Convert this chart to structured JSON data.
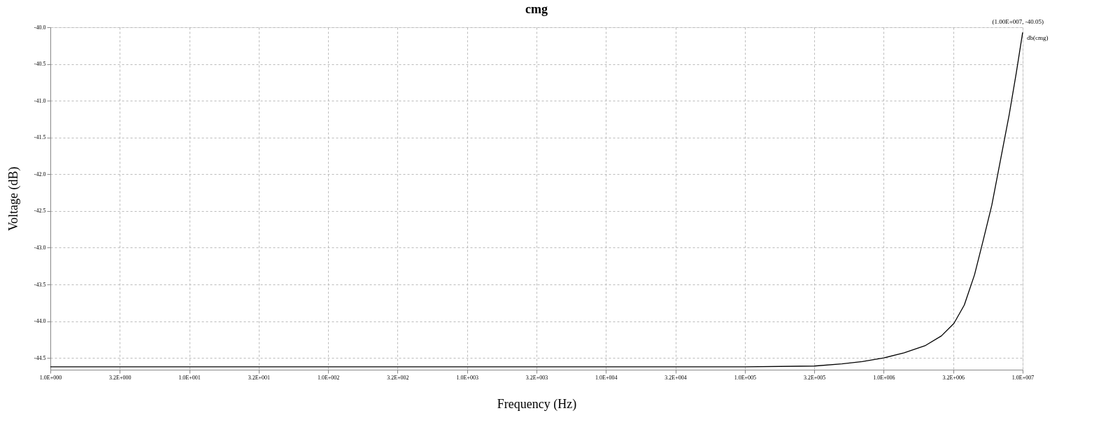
{
  "chart_data": {
    "type": "line",
    "title": "cmg",
    "xlabel": "Frequency (Hz)",
    "ylabel": "Voltage (dB)",
    "log": "x",
    "x": [
      1,
      10,
      100,
      1000,
      10000,
      100000,
      316228,
      500000,
      700000,
      1000000,
      1400000,
      2000000,
      2600000,
      3200000,
      3800000,
      4500000,
      5200000,
      6000000,
      7000000,
      8000000,
      9000000,
      10000000
    ],
    "series": [
      {
        "name": "db(cmg)",
        "color": "#000000",
        "values": [
          -44.62,
          -44.62,
          -44.62,
          -44.62,
          -44.62,
          -44.62,
          -44.61,
          -44.58,
          -44.55,
          -44.5,
          -44.43,
          -44.33,
          -44.2,
          -44.03,
          -43.78,
          -43.37,
          -42.9,
          -42.42,
          -41.76,
          -41.19,
          -40.62,
          -40.07
        ]
      }
    ],
    "annotations": [
      "(1.00E+007, -40.05)"
    ],
    "xlim": [
      1,
      10000000
    ],
    "xticks": [
      {
        "value": 1,
        "label": "1.0E+000"
      },
      {
        "value": 3.1623,
        "label": "3.2E+000"
      },
      {
        "value": 10,
        "label": "1.0E+001"
      },
      {
        "value": 31.623,
        "label": "3.2E+001"
      },
      {
        "value": 100,
        "label": "1.0E+002"
      },
      {
        "value": 316.23,
        "label": "3.2E+002"
      },
      {
        "value": 1000,
        "label": "1.0E+003"
      },
      {
        "value": 3162.3,
        "label": "3.2E+003"
      },
      {
        "value": 10000,
        "label": "1.0E+004"
      },
      {
        "value": 31623,
        "label": "3.2E+004"
      },
      {
        "value": 100000,
        "label": "1.0E+005"
      },
      {
        "value": 316228,
        "label": "3.2E+005"
      },
      {
        "value": 1000000,
        "label": "1.0E+006"
      },
      {
        "value": 3162280,
        "label": "3.2E+006"
      },
      {
        "value": 10000000,
        "label": "1.0E+007"
      }
    ],
    "ylim": [
      -44.66,
      -40.0
    ],
    "yticks": [
      {
        "value": -40.0,
        "label": "-40.0"
      },
      -40.5,
      {
        "value": -41.0,
        "label": "-41.0"
      },
      -41.5,
      {
        "value": -42.0,
        "label": "-42.0"
      },
      -42.5,
      {
        "value": -43.0,
        "label": "-43.0"
      },
      -43.5,
      {
        "value": -44.0,
        "label": "-44.0"
      },
      -44.5
    ],
    "grid": true,
    "legend": false,
    "marker": "none",
    "line_style": "solid"
  }
}
